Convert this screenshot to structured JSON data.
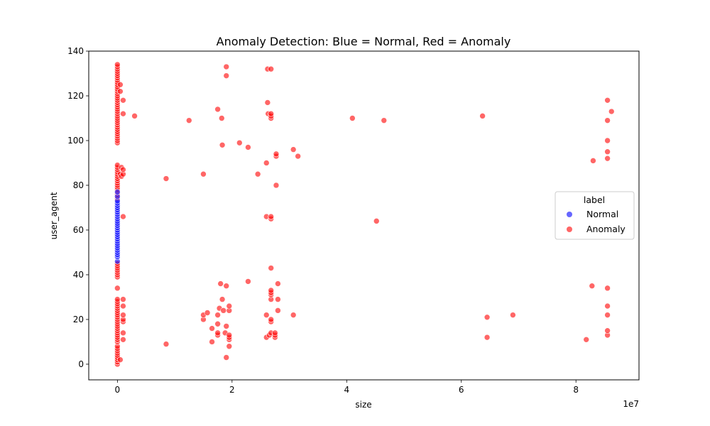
{
  "chart_data": {
    "type": "scatter",
    "title": "Anomaly Detection: Blue = Normal, Red = Anomaly",
    "xlabel": "size",
    "ylabel": "user_agent",
    "x_offset_label": "1e7",
    "x_scale": 10000000,
    "xlim": [
      -0.5,
      9.1
    ],
    "ylim": [
      -7,
      140
    ],
    "xticks": [
      0,
      2,
      4,
      6,
      8
    ],
    "yticks": [
      0,
      20,
      40,
      60,
      80,
      100,
      120,
      140
    ],
    "grid": false,
    "legend": {
      "title": "label",
      "position": "center-right",
      "entries": [
        {
          "name": "Normal",
          "color": "#0000ff"
        },
        {
          "name": "Anomaly",
          "color": "#ff0000"
        }
      ]
    },
    "series": [
      {
        "name": "Normal",
        "color": "#0000ff",
        "points": [
          [
            0,
            46
          ],
          [
            0,
            48
          ],
          [
            0,
            49
          ],
          [
            0,
            50
          ],
          [
            0,
            51
          ],
          [
            0,
            52
          ],
          [
            0,
            53
          ],
          [
            0,
            54
          ],
          [
            0,
            55
          ],
          [
            0,
            56
          ],
          [
            0,
            57
          ],
          [
            0,
            58
          ],
          [
            0,
            59
          ],
          [
            0,
            60
          ],
          [
            0,
            61
          ],
          [
            0,
            62
          ],
          [
            0,
            63
          ],
          [
            0,
            64
          ],
          [
            0,
            65
          ],
          [
            0,
            66
          ],
          [
            0,
            67
          ],
          [
            0,
            68
          ],
          [
            0,
            69
          ],
          [
            0,
            70
          ],
          [
            0,
            71
          ],
          [
            0,
            72
          ],
          [
            0,
            73
          ],
          [
            0,
            75
          ],
          [
            0,
            77
          ]
        ]
      },
      {
        "name": "Anomaly",
        "color": "#ff0000",
        "points": [
          [
            0,
            0
          ],
          [
            0,
            1
          ],
          [
            0,
            2
          ],
          [
            0,
            3
          ],
          [
            0,
            4
          ],
          [
            0,
            5
          ],
          [
            0,
            6
          ],
          [
            0,
            7
          ],
          [
            0,
            8
          ],
          [
            0,
            10
          ],
          [
            0,
            11
          ],
          [
            0,
            12
          ],
          [
            0,
            13
          ],
          [
            0,
            14
          ],
          [
            0,
            15
          ],
          [
            0,
            16
          ],
          [
            0,
            17
          ],
          [
            0,
            18
          ],
          [
            0,
            19
          ],
          [
            0,
            20
          ],
          [
            0,
            21
          ],
          [
            0,
            22
          ],
          [
            0,
            23
          ],
          [
            0,
            24
          ],
          [
            0,
            25
          ],
          [
            0,
            26
          ],
          [
            0,
            27
          ],
          [
            0,
            28
          ],
          [
            0,
            29
          ],
          [
            0,
            34
          ],
          [
            0,
            39
          ],
          [
            0,
            40
          ],
          [
            0,
            41
          ],
          [
            0,
            42
          ],
          [
            0,
            43
          ],
          [
            0,
            44
          ],
          [
            0,
            45
          ],
          [
            0,
            74
          ],
          [
            0,
            76
          ],
          [
            0,
            78
          ],
          [
            0,
            79
          ],
          [
            0,
            80
          ],
          [
            0,
            81
          ],
          [
            0,
            82
          ],
          [
            0,
            83
          ],
          [
            0,
            84
          ],
          [
            0,
            85
          ],
          [
            0,
            86
          ],
          [
            0,
            87
          ],
          [
            0,
            88
          ],
          [
            0,
            89
          ],
          [
            0,
            99
          ],
          [
            0,
            100
          ],
          [
            0,
            101
          ],
          [
            0,
            102
          ],
          [
            0,
            103
          ],
          [
            0,
            104
          ],
          [
            0,
            105
          ],
          [
            0,
            106
          ],
          [
            0,
            107
          ],
          [
            0,
            108
          ],
          [
            0,
            109
          ],
          [
            0,
            110
          ],
          [
            0,
            111
          ],
          [
            0,
            112
          ],
          [
            0,
            113
          ],
          [
            0,
            114
          ],
          [
            0,
            115
          ],
          [
            0,
            116
          ],
          [
            0,
            117
          ],
          [
            0,
            118
          ],
          [
            0,
            119
          ],
          [
            0,
            120
          ],
          [
            0,
            121
          ],
          [
            0,
            122
          ],
          [
            0,
            123
          ],
          [
            0,
            124
          ],
          [
            0,
            125
          ],
          [
            0,
            126
          ],
          [
            0,
            127
          ],
          [
            0,
            128
          ],
          [
            0,
            129
          ],
          [
            0,
            130
          ],
          [
            0,
            131
          ],
          [
            0,
            132
          ],
          [
            0,
            133
          ],
          [
            0,
            134
          ],
          [
            0.05,
            2
          ],
          [
            0.05,
            85
          ],
          [
            0.05,
            122
          ],
          [
            0.05,
            125
          ],
          [
            0.07,
            88
          ],
          [
            0.07,
            84
          ],
          [
            0.1,
            11
          ],
          [
            0.1,
            14
          ],
          [
            0.1,
            19
          ],
          [
            0.1,
            20
          ],
          [
            0.1,
            22
          ],
          [
            0.1,
            26
          ],
          [
            0.1,
            29
          ],
          [
            0.1,
            66
          ],
          [
            0.1,
            85
          ],
          [
            0.1,
            87
          ],
          [
            0.1,
            112
          ],
          [
            0.1,
            118
          ],
          [
            0.3,
            111
          ],
          [
            0.85,
            9
          ],
          [
            0.85,
            83
          ],
          [
            1.25,
            109
          ],
          [
            1.5,
            20
          ],
          [
            1.5,
            22
          ],
          [
            1.5,
            85
          ],
          [
            1.57,
            23
          ],
          [
            1.65,
            10
          ],
          [
            1.65,
            16
          ],
          [
            1.75,
            13
          ],
          [
            1.75,
            14
          ],
          [
            1.75,
            18
          ],
          [
            1.75,
            22
          ],
          [
            1.75,
            114
          ],
          [
            1.78,
            25
          ],
          [
            1.8,
            36
          ],
          [
            1.82,
            110
          ],
          [
            1.83,
            29
          ],
          [
            1.83,
            98
          ],
          [
            1.85,
            24
          ],
          [
            1.88,
            14
          ],
          [
            1.9,
            3
          ],
          [
            1.9,
            17
          ],
          [
            1.9,
            35
          ],
          [
            1.9,
            129
          ],
          [
            1.9,
            133
          ],
          [
            1.95,
            8
          ],
          [
            1.95,
            11
          ],
          [
            1.95,
            12
          ],
          [
            1.95,
            13
          ],
          [
            1.95,
            24
          ],
          [
            1.95,
            26
          ],
          [
            2.13,
            99
          ],
          [
            2.28,
            37
          ],
          [
            2.28,
            97
          ],
          [
            2.45,
            85
          ],
          [
            2.6,
            12
          ],
          [
            2.6,
            22
          ],
          [
            2.6,
            66
          ],
          [
            2.6,
            90
          ],
          [
            2.62,
            117
          ],
          [
            2.62,
            132
          ],
          [
            2.63,
            112
          ],
          [
            2.65,
            13
          ],
          [
            2.68,
            14
          ],
          [
            2.68,
            19
          ],
          [
            2.68,
            20
          ],
          [
            2.68,
            29
          ],
          [
            2.68,
            31
          ],
          [
            2.68,
            32
          ],
          [
            2.68,
            33
          ],
          [
            2.68,
            43
          ],
          [
            2.68,
            65
          ],
          [
            2.68,
            66
          ],
          [
            2.68,
            110
          ],
          [
            2.68,
            111
          ],
          [
            2.68,
            112
          ],
          [
            2.68,
            132
          ],
          [
            2.75,
            12
          ],
          [
            2.75,
            13
          ],
          [
            2.75,
            14
          ],
          [
            2.77,
            80
          ],
          [
            2.77,
            93
          ],
          [
            2.77,
            94
          ],
          [
            2.8,
            24
          ],
          [
            2.8,
            29
          ],
          [
            2.8,
            36
          ],
          [
            3.07,
            22
          ],
          [
            3.07,
            96
          ],
          [
            3.15,
            93
          ],
          [
            4.1,
            110
          ],
          [
            4.52,
            64
          ],
          [
            4.65,
            109
          ],
          [
            6.37,
            111
          ],
          [
            6.45,
            12
          ],
          [
            6.45,
            21
          ],
          [
            6.9,
            22
          ],
          [
            8.18,
            11
          ],
          [
            8.28,
            35
          ],
          [
            8.3,
            91
          ],
          [
            8.55,
            13
          ],
          [
            8.55,
            15
          ],
          [
            8.55,
            22
          ],
          [
            8.55,
            26
          ],
          [
            8.55,
            34
          ],
          [
            8.55,
            92
          ],
          [
            8.55,
            95
          ],
          [
            8.55,
            100
          ],
          [
            8.55,
            109
          ],
          [
            8.55,
            118
          ],
          [
            8.62,
            113
          ]
        ]
      }
    ]
  }
}
